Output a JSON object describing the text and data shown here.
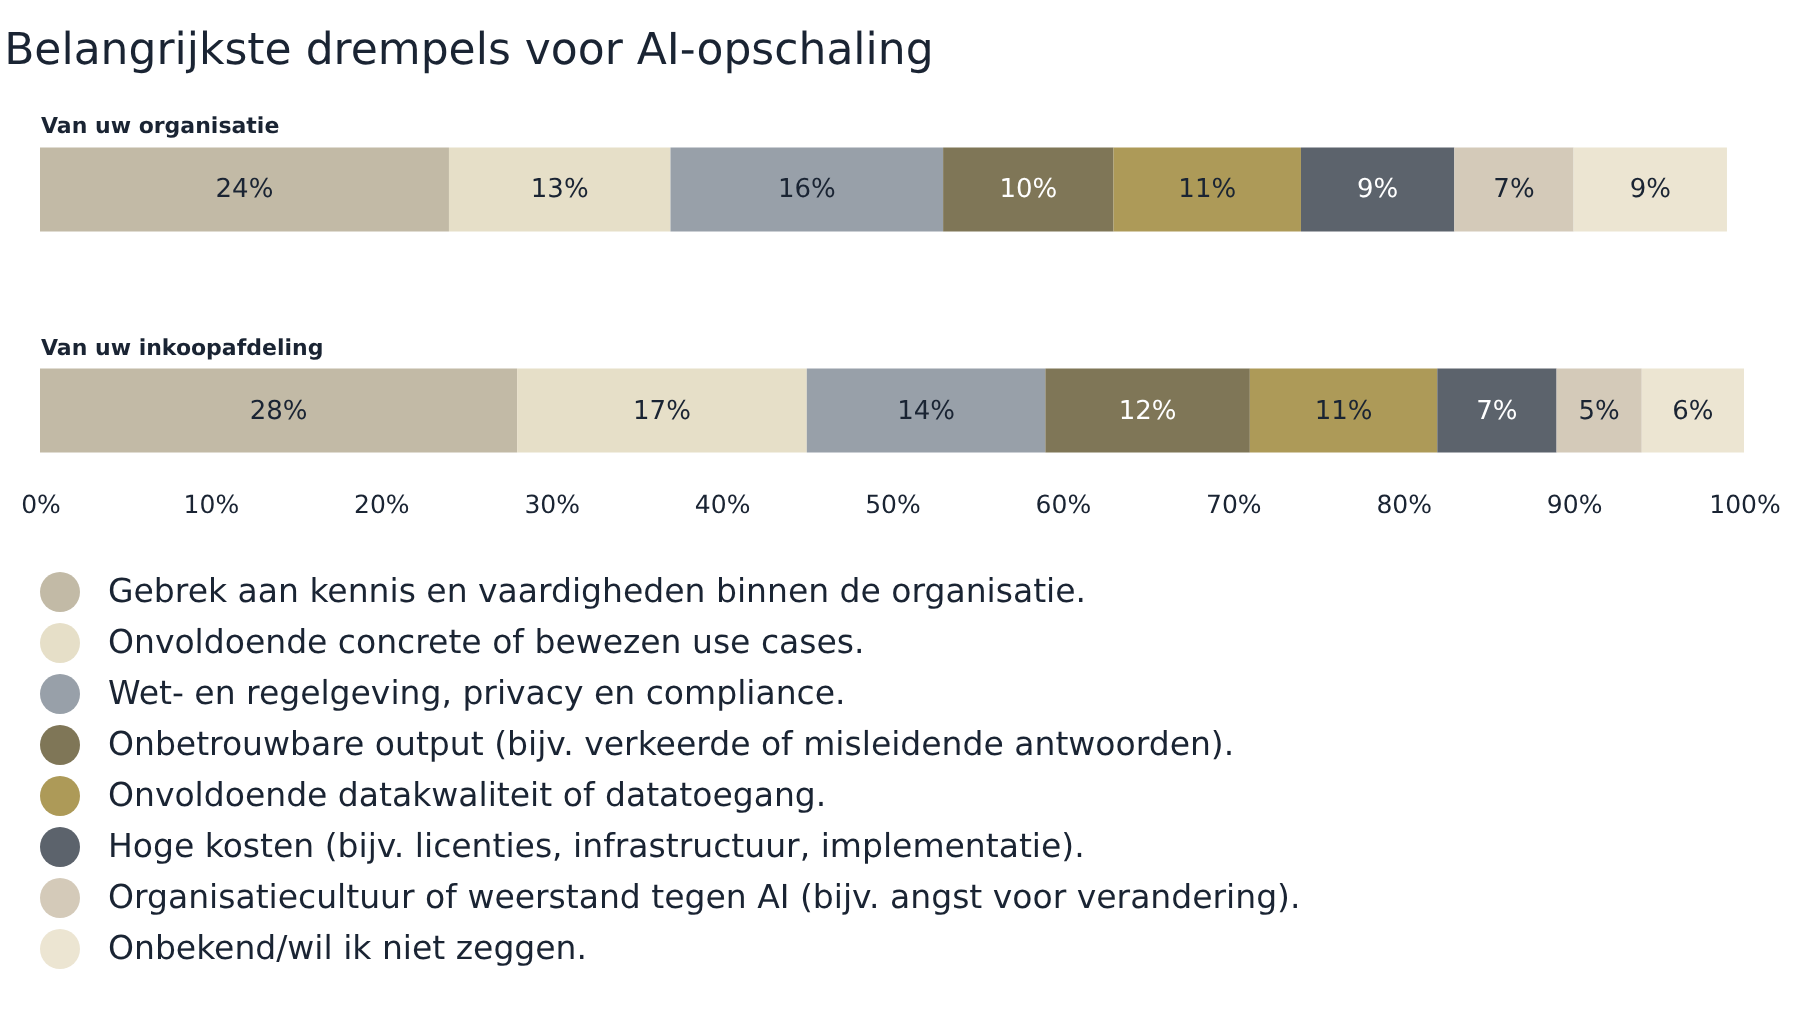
{
  "chart_data": {
    "type": "bar",
    "orientation": "horizontal",
    "stacked": true,
    "title": "Belangrijkste drempels voor AI-opschaling",
    "categories": [
      "Van uw organisatie",
      "Van uw inkoopafdeling"
    ],
    "series": [
      {
        "name": "Gebrek aan kennis en vaardigheden binnen de organisatie.",
        "color": "#c2baa6",
        "values": [
          24,
          28
        ],
        "value_labels": [
          "24%",
          "28%"
        ]
      },
      {
        "name": "Onvoldoende concrete of bewezen use cases.",
        "color": "#e6dfc8",
        "values": [
          13,
          17
        ],
        "value_labels": [
          "13%",
          "17%"
        ]
      },
      {
        "name": "Wet- en regelgeving, privacy en compliance.",
        "color": "#98a0a9",
        "values": [
          16,
          14
        ],
        "value_labels": [
          "16%",
          "14%"
        ]
      },
      {
        "name": "Onbetrouwbare output (bijv. verkeerde of misleidende antwoorden).",
        "color": "#7f7657",
        "values": [
          10,
          12
        ],
        "value_labels": [
          "10%",
          "12%"
        ]
      },
      {
        "name": "Onvoldoende datakwaliteit of datatoegang.",
        "color": "#ad9a58",
        "values": [
          11,
          11
        ],
        "value_labels": [
          "11%",
          "11%"
        ]
      },
      {
        "name": "Hoge kosten (bijv. licenties, infrastructuur, implementatie).",
        "color": "#5c636c",
        "values": [
          9,
          7
        ],
        "value_labels": [
          "9%",
          "7%"
        ]
      },
      {
        "name": "Organisatiecultuur of weerstand tegen AI (bijv. angst voor verandering).",
        "color": "#d4cab9",
        "values": [
          7,
          5
        ],
        "value_labels": [
          "7%",
          "5%"
        ]
      },
      {
        "name": "Onbekend/wil ik niet zeggen.",
        "color": "#ece5d2",
        "values": [
          9,
          6
        ],
        "value_labels": [
          "9%",
          "6%"
        ]
      }
    ],
    "xlim": [
      0,
      100
    ],
    "xticks": [
      {
        "value": 0,
        "label": "0%"
      },
      {
        "value": 10,
        "label": "10%"
      },
      {
        "value": 20,
        "label": "20%"
      },
      {
        "value": 30,
        "label": "30%"
      },
      {
        "value": 40,
        "label": "40%"
      },
      {
        "value": 50,
        "label": "50%"
      },
      {
        "value": 60,
        "label": "60%"
      },
      {
        "value": 70,
        "label": "70%"
      },
      {
        "value": 80,
        "label": "80%"
      },
      {
        "value": 90,
        "label": "90%"
      },
      {
        "value": 100,
        "label": "100%"
      }
    ],
    "grid": false,
    "legend": "bottom"
  }
}
